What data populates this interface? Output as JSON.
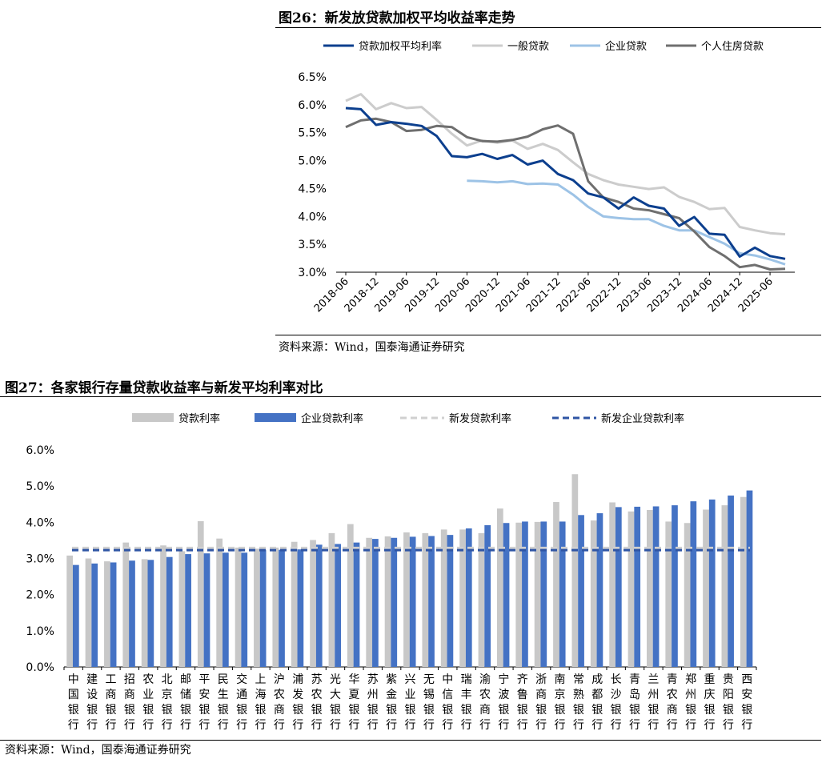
{
  "fig26": {
    "title": "图26：新发放贷款加权平均收益率走势",
    "source": "资料来源：Wind，国泰海通证券研究",
    "chart_data": {
      "type": "line",
      "x": [
        "2018-06",
        "2018-09",
        "2018-12",
        "2019-03",
        "2019-06",
        "2019-09",
        "2019-12",
        "2020-03",
        "2020-06",
        "2020-09",
        "2020-12",
        "2021-03",
        "2021-06",
        "2021-09",
        "2021-12",
        "2022-03",
        "2022-06",
        "2022-09",
        "2022-12",
        "2023-03",
        "2023-06",
        "2023-09",
        "2023-12",
        "2024-03",
        "2024-06",
        "2024-09",
        "2024-12",
        "2025-03",
        "2025-06",
        "2025-09"
      ],
      "xticks": [
        "2018-06",
        "2018-12",
        "2019-06",
        "2019-12",
        "2020-06",
        "2020-12",
        "2021-06",
        "2021-12",
        "2022-06",
        "2022-12",
        "2023-06",
        "2023-12",
        "2024-06",
        "2024-12",
        "2025-06"
      ],
      "ylim": [
        3.0,
        6.5
      ],
      "yticks": [
        "3.0%",
        "3.5%",
        "4.0%",
        "4.5%",
        "5.0%",
        "5.5%",
        "6.0%",
        "6.5%"
      ],
      "series": [
        {
          "name": "贷款加权平均利率",
          "color": "#0c3f8e",
          "values": [
            5.94,
            5.92,
            5.64,
            5.69,
            5.66,
            5.62,
            5.44,
            5.08,
            5.06,
            5.12,
            5.03,
            5.1,
            4.93,
            5.0,
            4.76,
            4.65,
            4.41,
            4.34,
            4.14,
            4.34,
            4.19,
            4.14,
            3.83,
            3.99,
            3.69,
            3.67,
            3.28,
            3.44,
            3.29,
            3.24
          ]
        },
        {
          "name": "一般贷款",
          "color": "#cccccc",
          "values": [
            6.07,
            6.19,
            5.92,
            6.03,
            5.94,
            5.96,
            5.73,
            5.48,
            5.27,
            5.36,
            5.32,
            5.36,
            5.21,
            5.3,
            5.19,
            4.97,
            4.76,
            4.65,
            4.57,
            4.53,
            4.49,
            4.52,
            4.35,
            4.26,
            4.13,
            4.15,
            3.81,
            3.75,
            3.7,
            3.68
          ]
        },
        {
          "name": "企业贷款",
          "color": "#9dc3e6",
          "values": [
            null,
            null,
            null,
            null,
            null,
            null,
            null,
            null,
            4.64,
            4.63,
            4.61,
            4.63,
            4.58,
            4.59,
            4.57,
            4.39,
            4.17,
            4.0,
            3.97,
            3.95,
            3.95,
            3.83,
            3.75,
            3.75,
            3.63,
            3.51,
            3.34,
            3.3,
            3.23,
            3.14
          ]
        },
        {
          "name": "个人住房贷款",
          "color": "#6f6f6f",
          "values": [
            5.6,
            5.72,
            5.75,
            5.69,
            5.53,
            5.55,
            5.62,
            5.6,
            5.42,
            5.35,
            5.34,
            5.37,
            5.43,
            5.56,
            5.63,
            5.48,
            4.63,
            4.34,
            4.26,
            4.14,
            4.11,
            4.04,
            3.97,
            3.73,
            3.45,
            3.29,
            3.09,
            3.13,
            3.05,
            3.06
          ]
        }
      ]
    }
  },
  "fig27": {
    "title": "图27：各家银行存量贷款收益率与新发平均利率对比",
    "source": "资料来源：Wind，国泰海通证券研究",
    "chart_data": {
      "type": "bar",
      "categories": [
        "中国银行",
        "建设银行",
        "工商银行",
        "招商银行",
        "农业银行",
        "北京银行",
        "邮储银行",
        "平安银行",
        "民生银行",
        "交通银行",
        "上海银行",
        "沪农商行",
        "浦发银行",
        "苏农银行",
        "光大银行",
        "华夏银行",
        "苏州银行",
        "紫金银行",
        "兴业银行",
        "无锡银行",
        "中信银行",
        "瑞丰银行",
        "渝农商行",
        "宁波银行",
        "齐鲁银行",
        "浙商银行",
        "南京银行",
        "常熟银行",
        "成都银行",
        "长沙银行",
        "青岛银行",
        "兰州银行",
        "青农商行",
        "郑州银行",
        "重庆银行",
        "贵阳银行",
        "西安银行"
      ],
      "ylim": [
        0,
        6
      ],
      "yticks": [
        "0.0%",
        "1.0%",
        "2.0%",
        "3.0%",
        "4.0%",
        "5.0%",
        "6.0%"
      ],
      "series": [
        {
          "name": "贷款利率",
          "color": "#c8c8c8",
          "values": [
            3.08,
            3.0,
            2.92,
            3.44,
            2.98,
            3.36,
            3.2,
            4.03,
            3.55,
            3.3,
            3.27,
            3.3,
            3.46,
            3.51,
            3.7,
            3.95,
            3.57,
            3.61,
            3.72,
            3.7,
            3.8,
            3.8,
            3.7,
            4.38,
            3.99,
            4.01,
            4.56,
            5.33,
            4.05,
            4.55,
            4.3,
            4.34,
            4.02,
            3.98,
            4.35,
            4.47,
            4.7
          ]
        },
        {
          "name": "企业贷款利率",
          "color": "#4472c4",
          "values": [
            2.82,
            2.86,
            2.89,
            2.94,
            2.96,
            3.04,
            3.12,
            3.14,
            3.16,
            3.16,
            3.23,
            3.24,
            3.25,
            3.38,
            3.4,
            3.44,
            3.54,
            3.57,
            3.6,
            3.62,
            3.65,
            3.83,
            3.92,
            3.98,
            4.02,
            4.02,
            4.02,
            4.2,
            4.25,
            4.42,
            4.43,
            4.44,
            4.47,
            4.58,
            4.63,
            4.74,
            4.88
          ]
        },
        {
          "name": "新发贷款利率",
          "color": "#d0d0d0",
          "line": 3.29
        },
        {
          "name": "新发企业贷款利率",
          "color": "#2f55a4",
          "line": 3.23
        }
      ]
    }
  }
}
